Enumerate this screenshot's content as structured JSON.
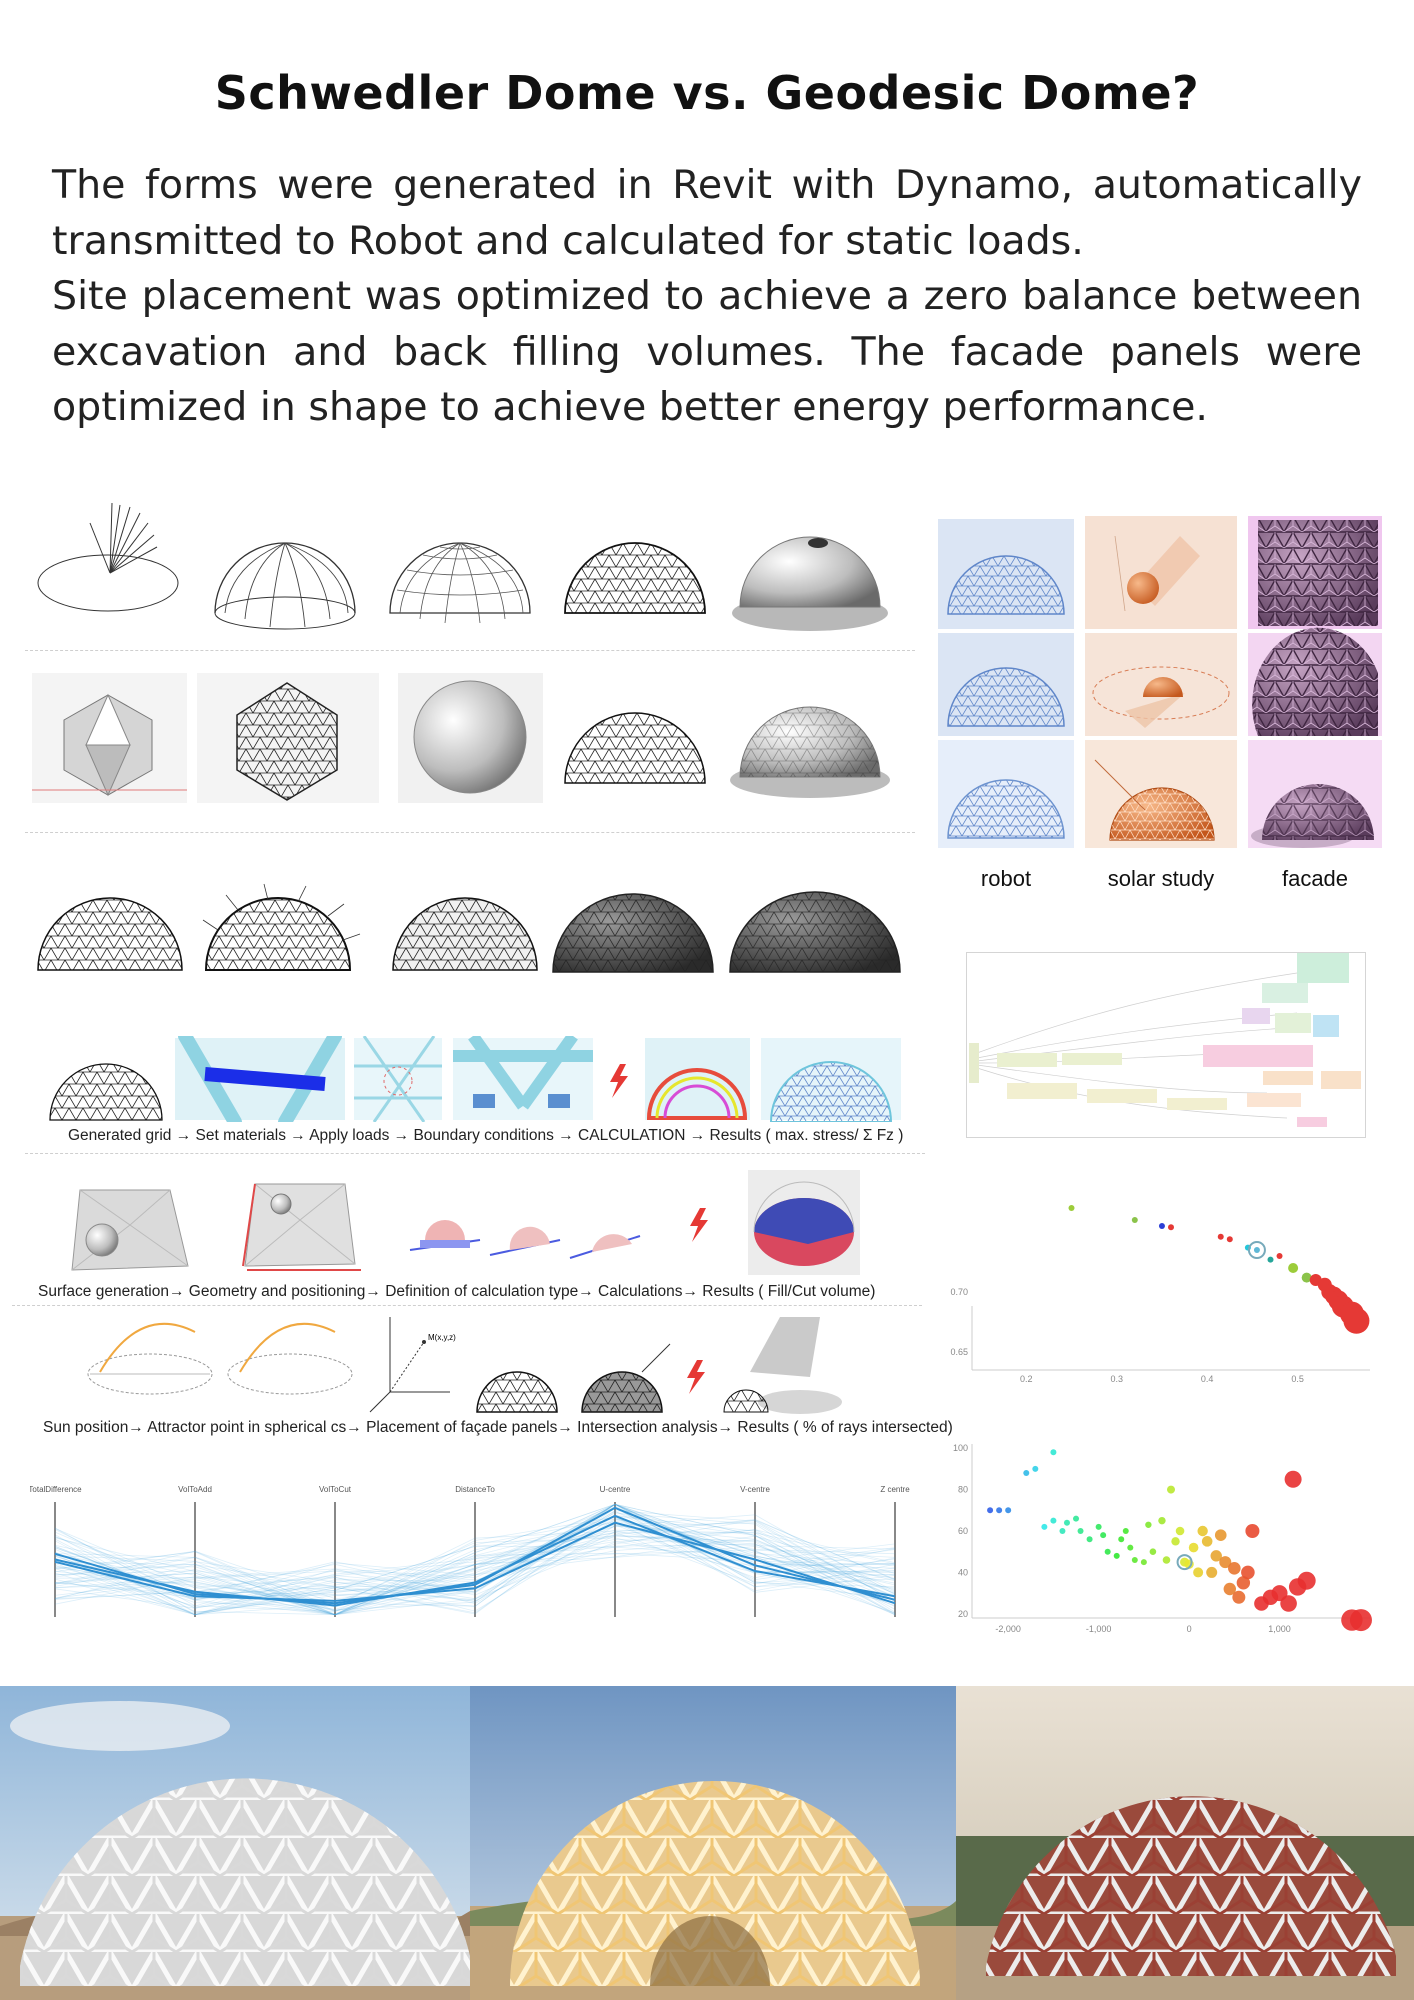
{
  "header": {
    "title": "Schwedler Dome vs. Geodesic Dome?"
  },
  "intro": {
    "paragraph1": "The forms were generated in Revit with Dynamo, automatically transmitted to Robot and calculated for static loads.",
    "paragraph2": "Site placement was optimized to achieve a zero balance between excavation and back filling volumes. The facade panels were optimized in shape to achieve better energy performance."
  },
  "grid_labels": {
    "robot": "robot",
    "solar": "solar study",
    "facade": "facade"
  },
  "captions": {
    "structure": "Generated grid → Set materials → Apply loads → Boundary conditions → CALCULATION → Results ( max. stress/ Σ Fz )",
    "site": "Surface generation→ Geometry and positioning→ Definition of calculation type→ Calculations→ Results ( Fill/Cut volume)",
    "solar": "Sun position→ Attractor point in spherical cs→ Placement of façade panels→ Intersection analysis→ Results ( % of rays intersected)"
  },
  "parallel_axes": [
    "TotalDifference",
    "VolToAdd",
    "VolToCut",
    "DistanceTo",
    "U-centre",
    "V-centre",
    "Z centre"
  ],
  "colors": {
    "robot_tint": "#c9d7ee",
    "solar_tint": "#f6e3d6",
    "facade_tint": "#efd2ee",
    "parallel_line": "#4aa8e0",
    "bubble_red": "#e53935"
  },
  "chart_data": [
    {
      "type": "scatter",
      "xticks": [
        "0.2",
        "0.3",
        "0.4",
        "0.5"
      ],
      "yticks": [
        "0.70",
        "0.65"
      ],
      "points": [
        [
          0.25,
          0.77
        ],
        [
          0.32,
          0.76
        ],
        [
          0.35,
          0.755
        ],
        [
          0.36,
          0.754
        ],
        [
          0.415,
          0.746
        ],
        [
          0.425,
          0.744
        ],
        [
          0.445,
          0.737
        ],
        [
          0.455,
          0.735
        ],
        [
          0.47,
          0.727
        ],
        [
          0.48,
          0.73
        ],
        [
          0.495,
          0.72
        ],
        [
          0.51,
          0.712
        ],
        [
          0.52,
          0.71
        ],
        [
          0.53,
          0.706
        ],
        [
          0.535,
          0.7
        ],
        [
          0.54,
          0.697
        ],
        [
          0.545,
          0.693
        ],
        [
          0.55,
          0.688
        ],
        [
          0.56,
          0.682
        ],
        [
          0.565,
          0.676
        ]
      ]
    },
    {
      "type": "scatter",
      "xticks": [
        "-2,000",
        "-1,000",
        "0",
        "1,000"
      ],
      "yticks": [
        "100",
        "80",
        "60",
        "40",
        "20"
      ],
      "points": [
        [
          -2200,
          70
        ],
        [
          -2100,
          70
        ],
        [
          -2000,
          70
        ],
        [
          -1800,
          88
        ],
        [
          -1700,
          90
        ],
        [
          -1500,
          98
        ],
        [
          -1600,
          62
        ],
        [
          -1500,
          65
        ],
        [
          -1400,
          60
        ],
        [
          -1350,
          64
        ],
        [
          -1250,
          66
        ],
        [
          -1200,
          60
        ],
        [
          -1100,
          56
        ],
        [
          -1000,
          62
        ],
        [
          -950,
          58
        ],
        [
          -900,
          50
        ],
        [
          -800,
          48
        ],
        [
          -750,
          56
        ],
        [
          -700,
          60
        ],
        [
          -650,
          52
        ],
        [
          -600,
          46
        ],
        [
          -500,
          45
        ],
        [
          -450,
          63
        ],
        [
          -400,
          50
        ],
        [
          -300,
          65
        ],
        [
          -250,
          46
        ],
        [
          -200,
          80
        ],
        [
          -150,
          55
        ],
        [
          -100,
          60
        ],
        [
          -50,
          45
        ],
        [
          0,
          44
        ],
        [
          50,
          52
        ],
        [
          100,
          40
        ],
        [
          150,
          60
        ],
        [
          200,
          55
        ],
        [
          250,
          40
        ],
        [
          300,
          48
        ],
        [
          350,
          58
        ],
        [
          400,
          45
        ],
        [
          450,
          32
        ],
        [
          500,
          42
        ],
        [
          550,
          28
        ],
        [
          600,
          35
        ],
        [
          650,
          40
        ],
        [
          700,
          60
        ],
        [
          800,
          25
        ],
        [
          900,
          28
        ],
        [
          1000,
          30
        ],
        [
          1100,
          25
        ],
        [
          1200,
          33
        ],
        [
          1300,
          36
        ],
        [
          1150,
          85
        ],
        [
          1800,
          17
        ],
        [
          1900,
          17
        ]
      ]
    }
  ]
}
